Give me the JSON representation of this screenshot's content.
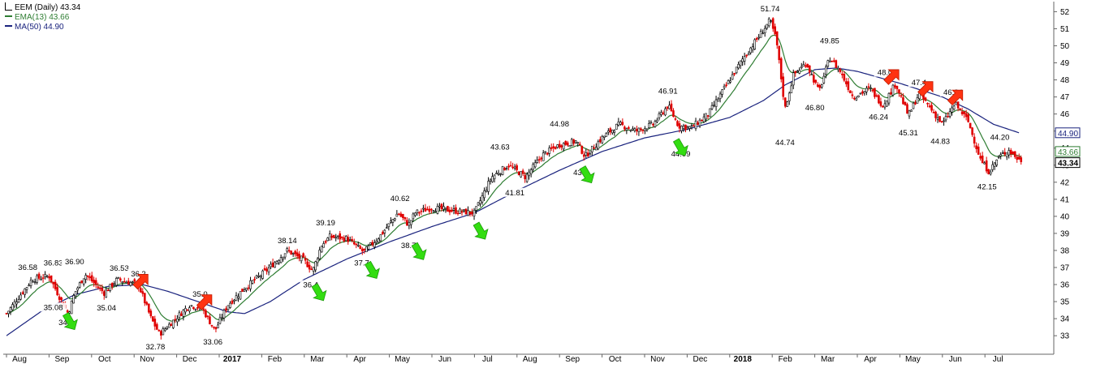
{
  "chart_data": {
    "type": "candlestick",
    "title": "EEM (Daily) 43.34",
    "legend": [
      {
        "name": "EMA(13) 43.66",
        "color": "#2e7d32"
      },
      {
        "name": "MA(50) 44.90",
        "color": "#1a237e"
      }
    ],
    "colors": {
      "up": "#000000",
      "down": "#e00000",
      "ema": "#2e7d32",
      "ma": "#1a237e",
      "buy_arrow": "#33dd11",
      "sell_arrow": "#ff3311"
    },
    "ylim": [
      32.2,
      52.4
    ],
    "y_ticks": [
      33,
      34,
      35,
      36,
      37,
      38,
      39,
      40,
      41,
      42,
      43,
      44,
      45,
      46,
      47,
      48,
      49,
      50,
      51,
      52
    ],
    "x_ticks": [
      "Aug",
      "Sep",
      "Oct",
      "Nov",
      "Dec",
      "2017",
      "Feb",
      "Mar",
      "Apr",
      "May",
      "Jun",
      "Jul",
      "Aug",
      "Sep",
      "Oct",
      "Nov",
      "Dec",
      "2018",
      "Feb",
      "Mar",
      "Apr",
      "May",
      "Jun",
      "Jul"
    ],
    "grid": false,
    "price_anchors": [
      {
        "month": 0.0,
        "price": 34.3
      },
      {
        "month": 0.6,
        "price": 36.3
      },
      {
        "month": 1.0,
        "price": 36.5
      },
      {
        "month": 1.3,
        "price": 35.0
      },
      {
        "month": 1.45,
        "price": 34.3
      },
      {
        "month": 1.6,
        "price": 35.5
      },
      {
        "month": 1.85,
        "price": 36.6
      },
      {
        "month": 2.3,
        "price": 35.5
      },
      {
        "month": 2.6,
        "price": 36.3
      },
      {
        "month": 3.1,
        "price": 36.0
      },
      {
        "month": 3.4,
        "price": 34.0
      },
      {
        "month": 3.6,
        "price": 33.1
      },
      {
        "month": 4.3,
        "price": 34.8
      },
      {
        "month": 4.6,
        "price": 34.6
      },
      {
        "month": 4.9,
        "price": 33.3
      },
      {
        "month": 5.2,
        "price": 34.8
      },
      {
        "month": 5.6,
        "price": 35.8
      },
      {
        "month": 6.1,
        "price": 36.8
      },
      {
        "month": 6.6,
        "price": 38.0
      },
      {
        "month": 7.0,
        "price": 37.4
      },
      {
        "month": 7.2,
        "price": 36.8
      },
      {
        "month": 7.4,
        "price": 38.3
      },
      {
        "month": 7.6,
        "price": 38.8
      },
      {
        "month": 8.0,
        "price": 38.7
      },
      {
        "month": 8.4,
        "price": 37.9
      },
      {
        "month": 8.8,
        "price": 38.9
      },
      {
        "month": 9.2,
        "price": 40.2
      },
      {
        "month": 9.45,
        "price": 39.5
      },
      {
        "month": 9.6,
        "price": 40.2
      },
      {
        "month": 10.0,
        "price": 40.5
      },
      {
        "month": 10.6,
        "price": 40.3
      },
      {
        "month": 11.0,
        "price": 40.2
      },
      {
        "month": 11.4,
        "price": 42.3
      },
      {
        "month": 11.8,
        "price": 43.0
      },
      {
        "month": 12.2,
        "price": 42.3
      },
      {
        "month": 12.6,
        "price": 43.6
      },
      {
        "month": 13.0,
        "price": 44.2
      },
      {
        "month": 13.4,
        "price": 44.4
      },
      {
        "month": 13.6,
        "price": 43.5
      },
      {
        "month": 14.0,
        "price": 44.6
      },
      {
        "month": 14.4,
        "price": 45.4
      },
      {
        "month": 14.8,
        "price": 45.0
      },
      {
        "month": 15.2,
        "price": 45.4
      },
      {
        "month": 15.55,
        "price": 46.5
      },
      {
        "month": 15.8,
        "price": 45.3
      },
      {
        "month": 16.1,
        "price": 45.2
      },
      {
        "month": 16.5,
        "price": 46.0
      },
      {
        "month": 16.9,
        "price": 47.6
      },
      {
        "month": 17.3,
        "price": 49.2
      },
      {
        "month": 17.7,
        "price": 50.6
      },
      {
        "month": 17.95,
        "price": 51.5
      },
      {
        "month": 18.1,
        "price": 50.3
      },
      {
        "month": 18.3,
        "price": 46.3
      },
      {
        "month": 18.5,
        "price": 48.3
      },
      {
        "month": 18.8,
        "price": 49.0
      },
      {
        "month": 19.1,
        "price": 47.3
      },
      {
        "month": 19.35,
        "price": 49.3
      },
      {
        "month": 19.6,
        "price": 48.5
      },
      {
        "month": 19.9,
        "price": 47.0
      },
      {
        "month": 20.3,
        "price": 47.5
      },
      {
        "month": 20.6,
        "price": 46.5
      },
      {
        "month": 20.9,
        "price": 47.8
      },
      {
        "month": 21.2,
        "price": 45.9
      },
      {
        "month": 21.45,
        "price": 47.2
      },
      {
        "month": 21.7,
        "price": 46.4
      },
      {
        "month": 22.0,
        "price": 45.4
      },
      {
        "month": 22.3,
        "price": 46.6
      },
      {
        "month": 22.6,
        "price": 45.6
      },
      {
        "month": 22.9,
        "price": 43.3
      },
      {
        "month": 23.1,
        "price": 42.6
      },
      {
        "month": 23.3,
        "price": 43.4
      },
      {
        "month": 23.55,
        "price": 43.9
      },
      {
        "month": 23.8,
        "price": 43.3
      }
    ],
    "ma50_anchors": [
      {
        "month": 0.0,
        "price": 33.0
      },
      {
        "month": 0.8,
        "price": 34.4
      },
      {
        "month": 1.6,
        "price": 35.4
      },
      {
        "month": 2.4,
        "price": 35.9
      },
      {
        "month": 3.2,
        "price": 36.0
      },
      {
        "month": 3.8,
        "price": 35.6
      },
      {
        "month": 4.5,
        "price": 35.0
      },
      {
        "month": 5.2,
        "price": 34.4
      },
      {
        "month": 5.6,
        "price": 34.3
      },
      {
        "month": 6.2,
        "price": 35.0
      },
      {
        "month": 7.0,
        "price": 36.3
      },
      {
        "month": 8.0,
        "price": 37.5
      },
      {
        "month": 9.0,
        "price": 38.5
      },
      {
        "month": 10.0,
        "price": 39.4
      },
      {
        "month": 11.0,
        "price": 40.2
      },
      {
        "month": 12.0,
        "price": 41.5
      },
      {
        "month": 13.0,
        "price": 42.7
      },
      {
        "month": 14.0,
        "price": 43.8
      },
      {
        "month": 15.0,
        "price": 44.6
      },
      {
        "month": 16.0,
        "price": 45.1
      },
      {
        "month": 17.0,
        "price": 45.8
      },
      {
        "month": 17.8,
        "price": 46.8
      },
      {
        "month": 18.3,
        "price": 47.7
      },
      {
        "month": 19.0,
        "price": 48.6
      },
      {
        "month": 19.5,
        "price": 48.7
      },
      {
        "month": 20.0,
        "price": 48.5
      },
      {
        "month": 21.0,
        "price": 47.8
      },
      {
        "month": 22.0,
        "price": 47.0
      },
      {
        "month": 22.6,
        "price": 46.3
      },
      {
        "month": 23.2,
        "price": 45.4
      },
      {
        "month": 23.8,
        "price": 44.9
      }
    ],
    "annotations": [
      {
        "label": "36.58",
        "month": 0.5,
        "price": 36.58,
        "pos": "above"
      },
      {
        "label": "36.83",
        "month": 1.1,
        "price": 36.83,
        "pos": "above"
      },
      {
        "label": "36.90",
        "month": 1.6,
        "price": 36.9,
        "pos": "above"
      },
      {
        "label": "36.53",
        "month": 2.65,
        "price": 36.53,
        "pos": "above"
      },
      {
        "label": "36.2",
        "month": 3.1,
        "price": 36.2,
        "pos": "above"
      },
      {
        "label": "35.08",
        "month": 1.1,
        "price": 35.08,
        "pos": "below"
      },
      {
        "label": "34.2",
        "month": 1.4,
        "price": 34.2,
        "pos": "below"
      },
      {
        "label": "35.04",
        "month": 2.35,
        "price": 35.04,
        "pos": "below"
      },
      {
        "label": "32.78",
        "month": 3.5,
        "price": 32.78,
        "pos": "below"
      },
      {
        "label": "35.0",
        "month": 4.55,
        "price": 35.0,
        "pos": "above"
      },
      {
        "label": "33.06",
        "month": 4.85,
        "price": 33.06,
        "pos": "below"
      },
      {
        "label": "38.14",
        "month": 6.6,
        "price": 38.14,
        "pos": "above"
      },
      {
        "label": "36.4",
        "month": 7.15,
        "price": 36.4,
        "pos": "below"
      },
      {
        "label": "39.19",
        "month": 7.5,
        "price": 39.19,
        "pos": "above"
      },
      {
        "label": "37.7",
        "month": 8.35,
        "price": 37.7,
        "pos": "below"
      },
      {
        "label": "40.62",
        "month": 9.25,
        "price": 40.62,
        "pos": "above"
      },
      {
        "label": "38.7",
        "month": 9.45,
        "price": 38.7,
        "pos": "below"
      },
      {
        "label": "43.63",
        "month": 11.6,
        "price": 43.63,
        "pos": "above"
      },
      {
        "label": "41.81",
        "month": 11.95,
        "price": 41.81,
        "pos": "below"
      },
      {
        "label": "44.98",
        "month": 13.0,
        "price": 44.98,
        "pos": "above"
      },
      {
        "label": "43.",
        "month": 13.45,
        "price": 43.0,
        "pos": "below"
      },
      {
        "label": "46.91",
        "month": 15.55,
        "price": 46.91,
        "pos": "above"
      },
      {
        "label": "44.09",
        "month": 15.85,
        "price": 44.09,
        "pos": "below"
      },
      {
        "label": "51.74",
        "month": 17.95,
        "price": 51.74,
        "pos": "above"
      },
      {
        "label": "44.74",
        "month": 18.3,
        "price": 44.74,
        "pos": "below"
      },
      {
        "label": "49.85",
        "month": 19.35,
        "price": 49.85,
        "pos": "above"
      },
      {
        "label": "46.80",
        "month": 19.0,
        "price": 46.8,
        "pos": "below"
      },
      {
        "label": "48.00",
        "month": 20.7,
        "price": 48.0,
        "pos": "above"
      },
      {
        "label": "46.24",
        "month": 20.5,
        "price": 46.24,
        "pos": "below"
      },
      {
        "label": "47.4",
        "month": 21.45,
        "price": 47.4,
        "pos": "above"
      },
      {
        "label": "45.31",
        "month": 21.2,
        "price": 45.31,
        "pos": "below"
      },
      {
        "label": "46.84",
        "month": 22.25,
        "price": 46.84,
        "pos": "above"
      },
      {
        "label": "44.83",
        "month": 21.95,
        "price": 44.83,
        "pos": "below"
      },
      {
        "label": "44.20",
        "month": 23.35,
        "price": 44.2,
        "pos": "above"
      },
      {
        "label": "42.15",
        "month": 23.05,
        "price": 42.15,
        "pos": "below"
      }
    ],
    "buy_arrows": [
      {
        "month": 1.45,
        "price": 34.5
      },
      {
        "month": 7.3,
        "price": 36.2
      },
      {
        "month": 8.55,
        "price": 37.5
      },
      {
        "month": 9.65,
        "price": 38.6
      },
      {
        "month": 11.1,
        "price": 39.8
      },
      {
        "month": 13.6,
        "price": 43.1
      },
      {
        "month": 15.8,
        "price": 44.7
      }
    ],
    "sell_arrows": [
      {
        "month": 3.25,
        "price": 36.6
      },
      {
        "month": 4.75,
        "price": 35.4
      },
      {
        "month": 20.9,
        "price": 48.6
      },
      {
        "month": 21.7,
        "price": 47.9
      },
      {
        "month": 22.4,
        "price": 47.4
      }
    ],
    "axis_tags": [
      {
        "label": "44.90",
        "price": 44.9,
        "style": "ma"
      },
      {
        "label": "43.66",
        "price": 43.66,
        "style": "ema"
      },
      {
        "label": "43.34",
        "price": 43.34,
        "style": "last"
      }
    ]
  }
}
